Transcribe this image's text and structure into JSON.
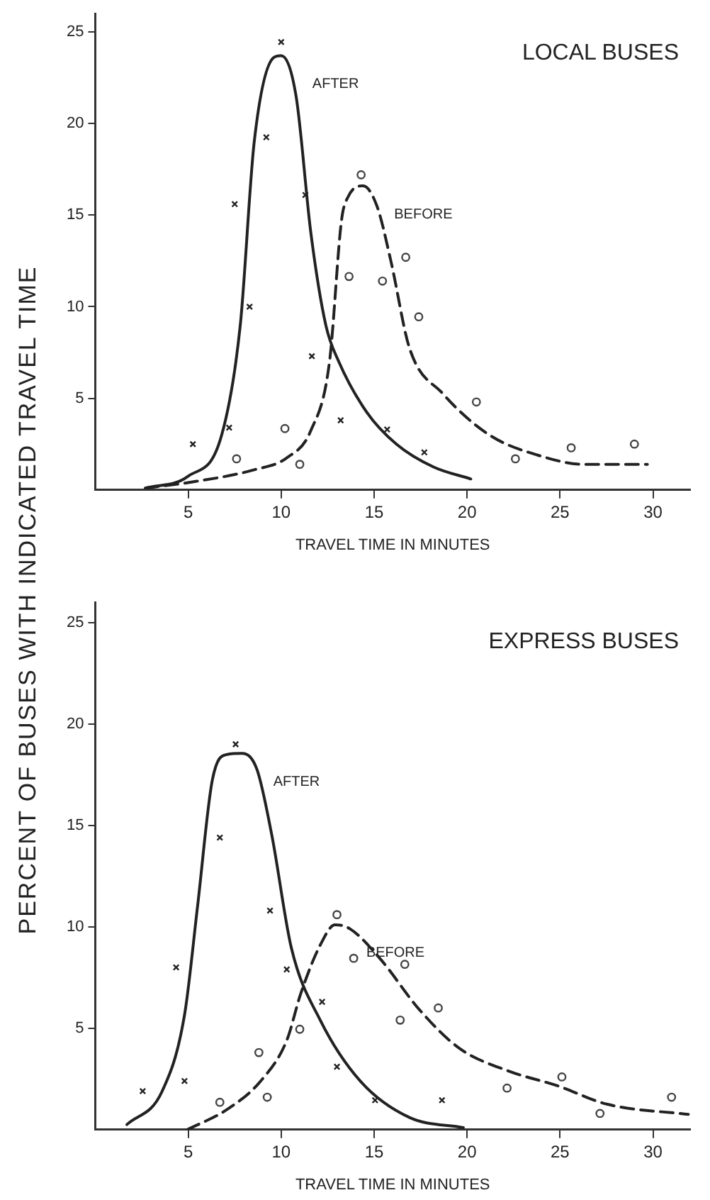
{
  "chart_data": [
    {
      "type": "line",
      "title": "LOCAL BUSES",
      "xlabel": "TRAVEL TIME IN MINUTES",
      "ylabel": "PERCENT OF BUSES WITH INDICATED TRAVEL TIME",
      "xlim": [
        0,
        32
      ],
      "xticks": [
        5,
        10,
        15,
        20,
        25,
        30
      ],
      "ylim": [
        0,
        26
      ],
      "yticks": [
        5,
        10,
        15,
        20,
        25
      ],
      "grid": false,
      "legend": false,
      "series": [
        {
          "name": "AFTER",
          "color": "#222222",
          "line_style": "solid",
          "marker": "none",
          "x": [
            2.7,
            5.0,
            6.8,
            7.8,
            8.55,
            9.6,
            10.0,
            10.8,
            11.6,
            12.4,
            13.1,
            14.6,
            16.2,
            18.2,
            20.2
          ],
          "values": [
            0.1,
            0.75,
            3.0,
            9.0,
            19,
            23.6,
            23.7,
            21.5,
            14,
            9,
            7,
            4.25,
            2.5,
            1.25,
            0.6
          ]
        },
        {
          "name": "BEFORE",
          "color": "#222222",
          "line_style": "dashed",
          "marker": "none",
          "x": [
            2.7,
            5.0,
            8.55,
            10.3,
            11.6,
            12.6,
            13.25,
            13.6,
            14.4,
            15.15,
            15.9,
            16.9,
            18.7,
            21.2,
            23.8,
            26.3,
            29.7
          ],
          "values": [
            0.1,
            0.4,
            1.1,
            1.75,
            3.25,
            7,
            14.75,
            16,
            16.6,
            15.5,
            12.5,
            7.75,
            5.25,
            3.0,
            1.9,
            1.4,
            1.4
          ]
        },
        {
          "type": "scatter",
          "color": "#222222",
          "marker": "cross",
          "x": [
            5.25,
            7.2,
            7.5,
            8.3,
            9.2,
            10.0,
            11.3,
            11.65,
            13.2,
            15.7,
            17.7
          ],
          "values": [
            2.5,
            3.4,
            15.6,
            10.0,
            19.25,
            24.45,
            16.1,
            7.3,
            3.8,
            3.3,
            2.05
          ]
        },
        {
          "type": "scatter",
          "color": "#444444",
          "marker": "circle",
          "x": [
            7.6,
            10.2,
            11.0,
            13.65,
            14.3,
            15.45,
            16.7,
            17.4,
            20.5,
            22.6,
            25.6,
            29.0
          ],
          "values": [
            1.7,
            3.35,
            1.4,
            11.65,
            17.2,
            11.4,
            12.7,
            9.45,
            4.8,
            1.7,
            2.3,
            2.5
          ]
        }
      ]
    },
    {
      "type": "line",
      "title": "EXPRESS BUSES",
      "xlabel": "TRAVEL TIME IN MINUTES",
      "xlim": [
        0,
        32
      ],
      "xticks": [
        5,
        10,
        15,
        20,
        25,
        30
      ],
      "ylim": [
        0,
        26
      ],
      "yticks": [
        5,
        10,
        15,
        20,
        25
      ],
      "grid": false,
      "legend": false,
      "series": [
        {
          "name": "AFTER",
          "color": "#222222",
          "line_style": "solid",
          "marker": "none",
          "x": [
            1.7,
            3.6,
            4.8,
            5.5,
            6.3,
            7.1,
            7.9,
            8.7,
            9.5,
            10.55,
            12.1,
            14.25,
            16.9,
            19.8
          ],
          "values": [
            0.25,
            1.9,
            5.65,
            11,
            17.25,
            18.5,
            18.55,
            17.75,
            14.5,
            8.95,
            5.4,
            2.4,
            0.6,
            0.1
          ]
        },
        {
          "name": "BEFORE",
          "color": "#222222",
          "line_style": "dashed",
          "marker": "none",
          "x": [
            4.95,
            7.1,
            8.9,
            10.3,
            11.05,
            12.1,
            12.9,
            13.7,
            15.3,
            17.45,
            19.6,
            22.2,
            24.9,
            27.55,
            31.9
          ],
          "values": [
            0,
            1.0,
            2.4,
            4.4,
            6.7,
            9.1,
            10.1,
            9.9,
            8.45,
            5.9,
            4.0,
            2.9,
            2.15,
            1.25,
            0.75
          ]
        },
        {
          "type": "scatter",
          "color": "#222222",
          "marker": "cross",
          "x": [
            2.55,
            4.35,
            4.8,
            6.7,
            7.55,
            9.4,
            10.3,
            12.2,
            13.0,
            15.05,
            18.65
          ],
          "values": [
            1.9,
            8.0,
            2.4,
            14.4,
            19.0,
            10.8,
            7.9,
            6.3,
            3.1,
            1.45,
            1.45
          ]
        },
        {
          "type": "scatter",
          "color": "#444444",
          "marker": "circle",
          "x": [
            6.7,
            8.8,
            9.25,
            11.0,
            13.0,
            13.9,
            16.4,
            16.65,
            18.45,
            22.15,
            25.1,
            27.15,
            31.0
          ],
          "values": [
            1.35,
            3.8,
            1.6,
            4.95,
            10.6,
            8.45,
            5.4,
            8.15,
            6.0,
            2.05,
            2.6,
            0.8,
            1.6
          ]
        }
      ]
    }
  ]
}
